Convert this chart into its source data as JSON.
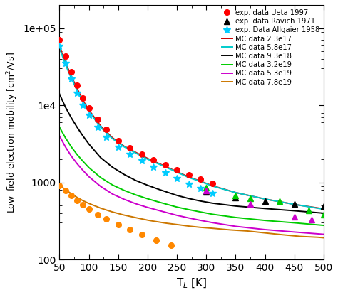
{
  "xlabel": "T$_L$ [K]",
  "ylabel": "Low–field electron mobility [cm$^2$/Vs]",
  "xlim": [
    50,
    500
  ],
  "ylim": [
    100,
    200000
  ],
  "exp_ueta_T": [
    50,
    60,
    70,
    80,
    90,
    100,
    115,
    130,
    150,
    170,
    190,
    210,
    230,
    250,
    270,
    290,
    310
  ],
  "exp_ueta_mu": [
    70000,
    43000,
    27000,
    18000,
    12500,
    9200,
    6500,
    4900,
    3500,
    2800,
    2300,
    1950,
    1700,
    1450,
    1250,
    1100,
    970
  ],
  "exp_ravich_T": [
    300,
    350,
    400,
    450,
    500
  ],
  "exp_ravich_mu": [
    760,
    630,
    570,
    530,
    490
  ],
  "exp_allgaier_T": [
    50,
    60,
    70,
    80,
    90,
    100,
    115,
    130,
    150,
    170,
    190,
    210,
    230,
    250,
    270,
    290,
    310
  ],
  "exp_allgaier_mu": [
    58000,
    35000,
    22000,
    14500,
    10000,
    7500,
    5200,
    3900,
    2900,
    2300,
    1900,
    1600,
    1350,
    1130,
    960,
    840,
    730
  ],
  "mc_23e17_T": [
    50,
    60,
    70,
    80,
    90,
    100,
    120,
    140,
    160,
    180,
    200,
    220,
    250,
    270,
    290,
    310,
    350,
    400,
    450,
    500
  ],
  "mc_23e17_mu": [
    58000,
    36000,
    24000,
    16500,
    11500,
    8700,
    5400,
    3800,
    2950,
    2450,
    2050,
    1750,
    1380,
    1180,
    1040,
    910,
    740,
    610,
    520,
    455
  ],
  "mc_58e17_T": [
    50,
    60,
    70,
    80,
    90,
    100,
    120,
    140,
    160,
    180,
    200,
    220,
    250,
    270,
    290,
    310,
    350,
    400,
    450,
    500
  ],
  "mc_58e17_mu": [
    55000,
    34000,
    22500,
    15500,
    11000,
    8300,
    5200,
    3700,
    2900,
    2400,
    2000,
    1720,
    1360,
    1160,
    1030,
    900,
    740,
    610,
    520,
    450
  ],
  "mc_93e18_T": [
    50,
    60,
    70,
    80,
    90,
    100,
    120,
    140,
    160,
    180,
    200,
    220,
    250,
    270,
    290,
    310,
    350,
    400,
    450,
    500
  ],
  "mc_93e18_mu": [
    14000,
    9500,
    6900,
    5200,
    4000,
    3150,
    2100,
    1580,
    1270,
    1060,
    920,
    810,
    680,
    620,
    575,
    540,
    495,
    460,
    430,
    400
  ],
  "mc_32e19_T": [
    50,
    60,
    70,
    80,
    90,
    100,
    120,
    140,
    160,
    180,
    200,
    220,
    250,
    270,
    290,
    310,
    350,
    400,
    450,
    500
  ],
  "mc_32e19_mu": [
    5200,
    3800,
    2900,
    2300,
    1880,
    1560,
    1160,
    930,
    790,
    690,
    615,
    555,
    480,
    445,
    415,
    388,
    352,
    322,
    300,
    278
  ],
  "mc_53e19_T": [
    50,
    60,
    70,
    80,
    90,
    100,
    120,
    140,
    160,
    180,
    200,
    220,
    250,
    270,
    290,
    310,
    350,
    400,
    450,
    500
  ],
  "mc_53e19_mu": [
    4000,
    2900,
    2200,
    1750,
    1430,
    1190,
    890,
    710,
    605,
    530,
    475,
    432,
    375,
    347,
    323,
    302,
    270,
    245,
    228,
    213
  ],
  "mc_78e19_T": [
    50,
    60,
    70,
    80,
    90,
    100,
    120,
    140,
    160,
    180,
    200,
    210,
    230,
    250,
    270,
    290,
    310,
    340,
    370,
    400,
    430,
    460,
    490,
    500
  ],
  "mc_78e19_mu": [
    920,
    810,
    715,
    640,
    580,
    535,
    465,
    415,
    378,
    350,
    325,
    315,
    298,
    285,
    272,
    262,
    255,
    243,
    235,
    222,
    210,
    200,
    195,
    192
  ],
  "exp_orange_T": [
    50,
    60,
    70,
    80,
    90,
    100,
    115,
    130,
    150,
    170,
    190,
    215,
    240
  ],
  "exp_orange_mu": [
    920,
    790,
    680,
    590,
    510,
    450,
    385,
    335,
    285,
    245,
    210,
    180,
    155
  ],
  "exp_green_tri_T": [
    300,
    350,
    375,
    425,
    475,
    500
  ],
  "exp_green_tri_mu": [
    860,
    680,
    620,
    570,
    430,
    385
  ],
  "exp_magenta_tri_T": [
    300,
    375,
    450,
    480
  ],
  "exp_magenta_tri_mu": [
    790,
    530,
    360,
    330
  ],
  "colors": {
    "exp_ueta": "#ff0000",
    "exp_ravich": "#000000",
    "exp_allgaier": "#00ccff",
    "mc_23e17": "#cc0000",
    "mc_58e17": "#00cccc",
    "mc_93e18": "#000000",
    "mc_32e19": "#00cc00",
    "mc_53e19": "#cc00cc",
    "mc_78e19": "#cc7700",
    "exp_orange": "#ff8800",
    "exp_green_tri": "#00cc00",
    "exp_magenta_tri": "#cc00cc"
  }
}
